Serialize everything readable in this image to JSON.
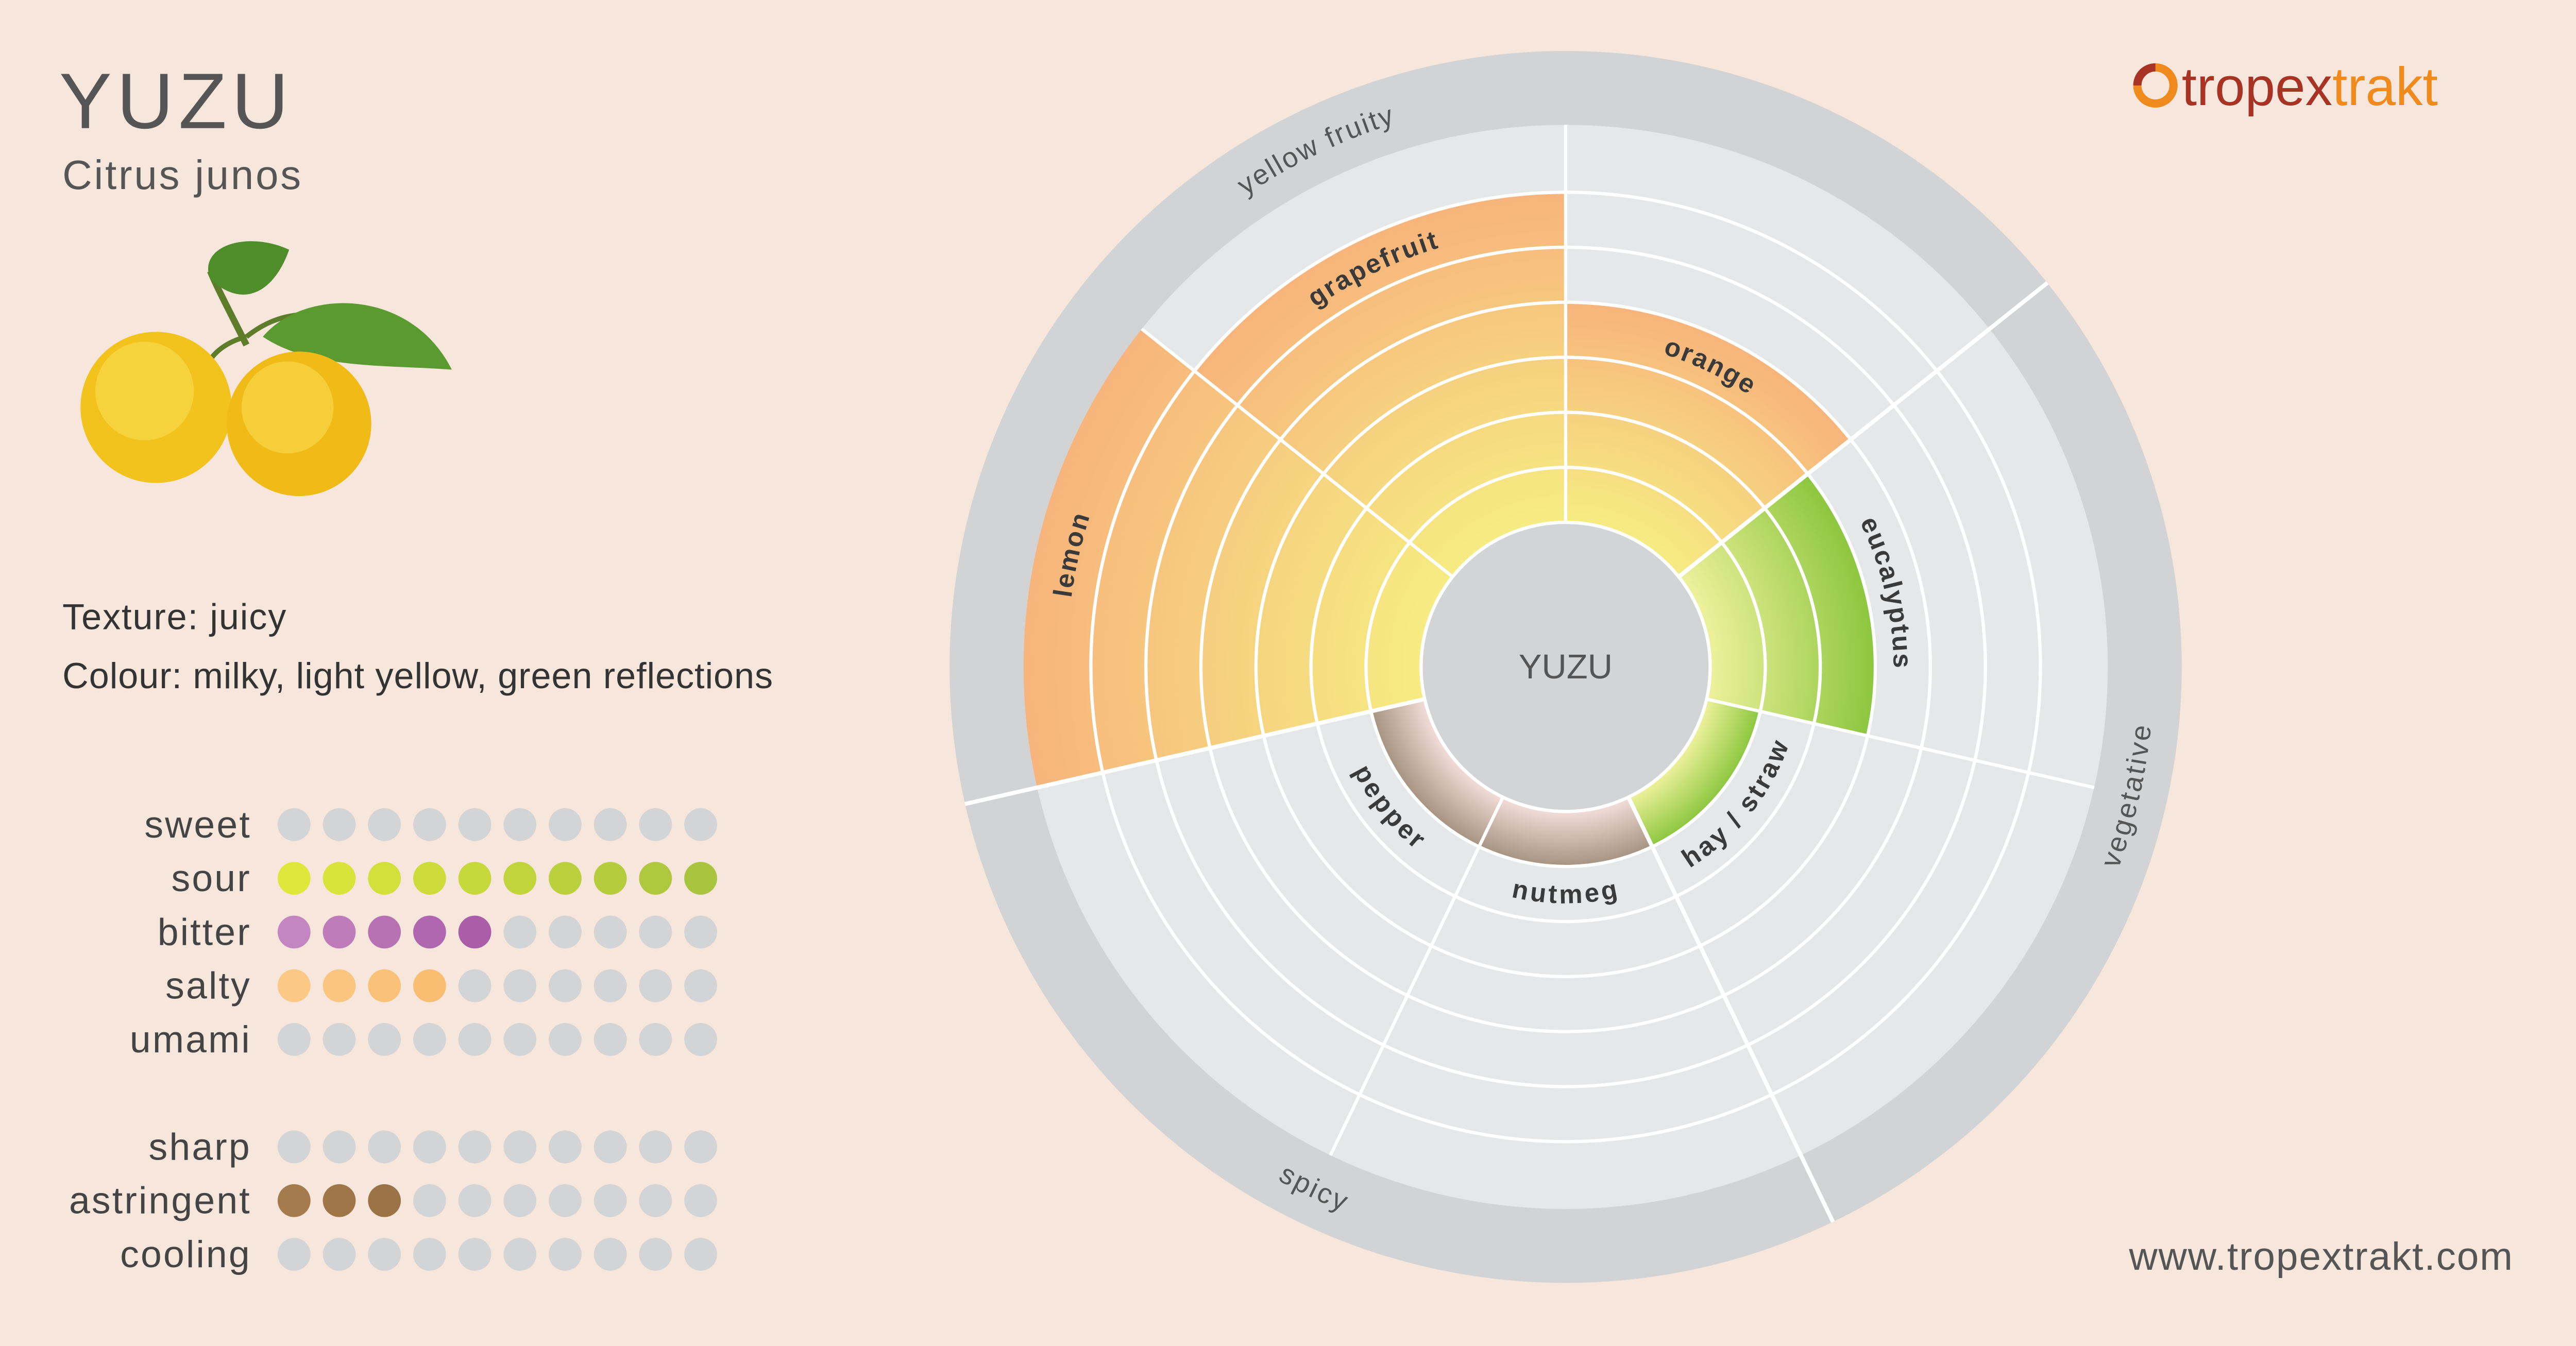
{
  "header": {
    "title": "YUZU",
    "subtitle": "Citrus junos"
  },
  "logo": {
    "parts": [
      "tropex",
      "trakt"
    ]
  },
  "properties": [
    "Texture: juicy",
    "Colour: milky, light yellow, green reflections"
  ],
  "taste": {
    "scale_max": 10,
    "groups": [
      [
        {
          "name": "sweet",
          "value": 0,
          "colors": [
            "#d3d4d6",
            "#d3d4d6"
          ]
        },
        {
          "name": "sour",
          "value": 10,
          "colors": [
            "#dfe83a",
            "#a9c43e"
          ]
        },
        {
          "name": "bitter",
          "value": 5,
          "colors": [
            "#c486c0",
            "#8a2a8c"
          ]
        },
        {
          "name": "salty",
          "value": 4,
          "colors": [
            "#fbc985",
            "#f6a84a"
          ]
        },
        {
          "name": "umami",
          "value": 0,
          "colors": [
            "#d3d4d6",
            "#d3d4d6"
          ]
        }
      ],
      [
        {
          "name": "sharp",
          "value": 0,
          "colors": [
            "#d3d4d6",
            "#d3d4d6"
          ]
        },
        {
          "name": "astringent",
          "value": 3,
          "colors": [
            "#a57a4c",
            "#7b5a34"
          ]
        },
        {
          "name": "cooling",
          "value": 0,
          "colors": [
            "#d3d4d6",
            "#d3d4d6"
          ]
        }
      ]
    ]
  },
  "wheel": {
    "center_label": "YUZU",
    "levels": 7,
    "categories": [
      {
        "name": "yellow fruity",
        "segments": [
          {
            "name": "lemon",
            "value": 7,
            "colors": [
              "#f6ec82",
              "#f7b47c"
            ]
          },
          {
            "name": "grapefruit",
            "value": 6,
            "colors": [
              "#f6ec82",
              "#f7b47c"
            ]
          },
          {
            "name": "orange",
            "value": 4,
            "colors": [
              "#f6ec82",
              "#f7b47c"
            ]
          }
        ]
      },
      {
        "name": "vegetative",
        "segments": [
          {
            "name": "eucalyptus",
            "value": 3,
            "colors": [
              "#eef19c",
              "#8cc63e"
            ]
          },
          {
            "name": "hay / straw",
            "value": 1,
            "colors": [
              "#eef19c",
              "#8cc63e"
            ]
          }
        ]
      },
      {
        "name": "spicy",
        "segments": [
          {
            "name": "nutmeg",
            "value": 1,
            "colors": [
              "#f3ddd9",
              "#a69380"
            ]
          },
          {
            "name": "pepper",
            "value": 1,
            "colors": [
              "#f3ddd9",
              "#a69380"
            ]
          }
        ]
      }
    ]
  },
  "website": "www.tropextrakt.com"
}
